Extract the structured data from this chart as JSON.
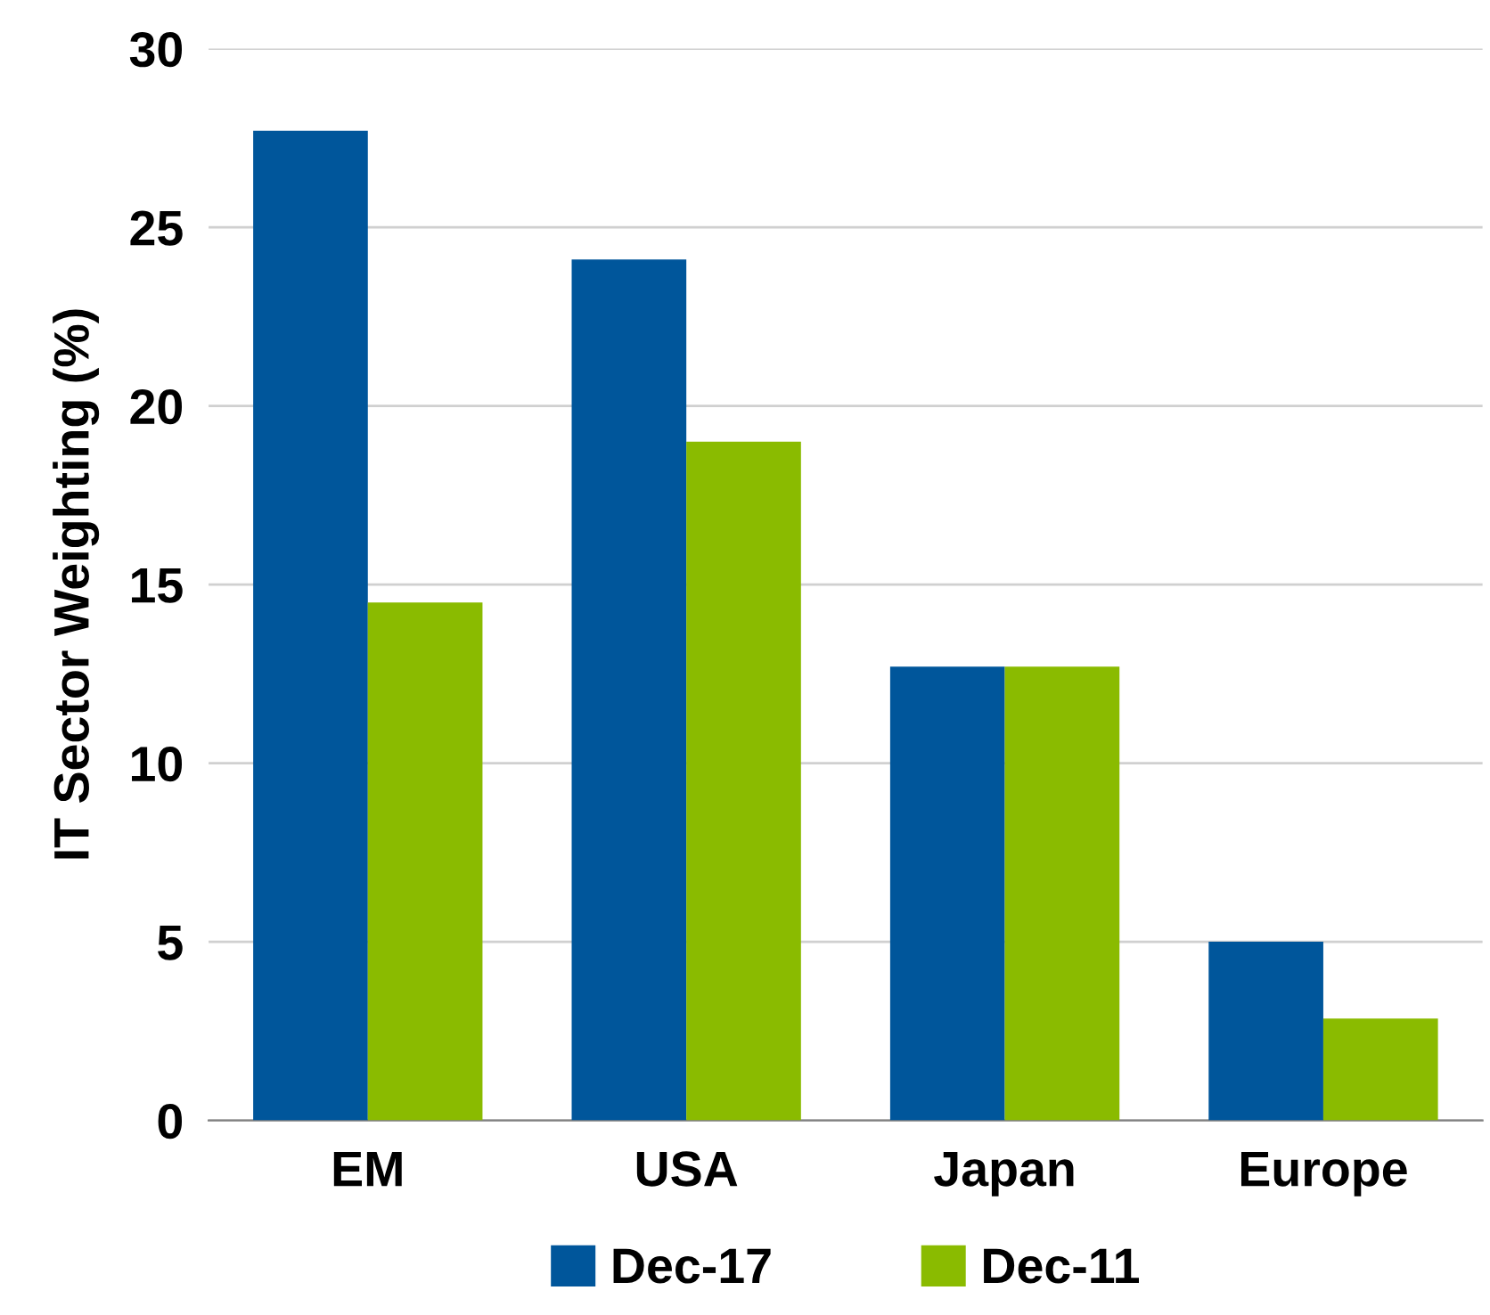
{
  "chart_data": {
    "type": "bar",
    "ylabel": "IT Sector Weighting (%)",
    "categories": [
      "EM",
      "USA",
      "Japan",
      "Europe"
    ],
    "series": [
      {
        "name": "Dec-17",
        "color": "#00569b",
        "values": [
          27.7,
          24.1,
          12.7,
          5.0
        ]
      },
      {
        "name": "Dec-11",
        "color": "#8abb00",
        "values": [
          14.5,
          19.0,
          12.7,
          2.85
        ]
      }
    ],
    "ylim": [
      0,
      30
    ],
    "yticks": [
      0,
      5,
      10,
      15,
      20,
      25,
      30
    ],
    "grid": "y",
    "legend": "bottom"
  }
}
